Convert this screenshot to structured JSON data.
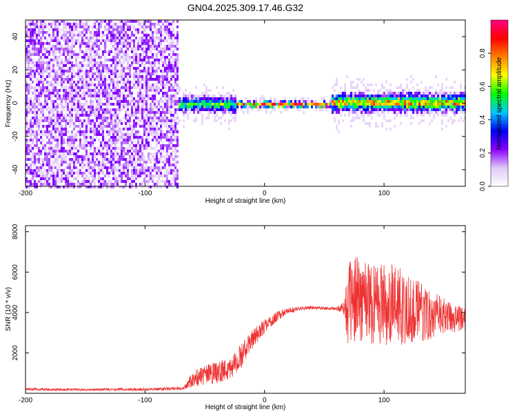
{
  "title": "GN04.2025.309.17.46.G32",
  "chart_data": [
    {
      "type": "heatmap",
      "xlabel": "Height of straight line (km)",
      "ylabel": "Frequency (Hz)",
      "xlim": [
        -200,
        168
      ],
      "ylim": [
        -50,
        50
      ],
      "xticks": [
        -200,
        -100,
        0,
        100
      ],
      "yticks": [
        -40,
        -20,
        0,
        20,
        40
      ],
      "grid": false,
      "colorbar": {
        "label": "Normalized spectral amplitude",
        "range": [
          0,
          1
        ],
        "ticks": [
          "0.0",
          "0.2",
          "0.4",
          "0.6",
          "0.8"
        ],
        "colors": [
          "#ffffff",
          "#e0c8f8",
          "#8800ff",
          "#0000ff",
          "#00c8ff",
          "#00ff00",
          "#ffff00",
          "#ff8000",
          "#ff0000",
          "#ff0080"
        ]
      },
      "segments": [
        {
          "x_range": [
            -200,
            -72
          ],
          "description_value": "broadband noise",
          "mean_amplitude": 0.15
        },
        {
          "x_range": [
            -72,
            -25
          ],
          "center_frequency": 0,
          "band_halfwidth_hz": 5,
          "peak_amplitude": 0.6
        },
        {
          "x_range": [
            -25,
            55
          ],
          "center_frequency": 0,
          "band_halfwidth_hz": 2,
          "peak_amplitude": 0.95
        },
        {
          "x_range": [
            55,
            168
          ],
          "center_frequency": 1,
          "band_halfwidth_hz": 6,
          "peak_amplitude": 0.8
        }
      ]
    },
    {
      "type": "line",
      "xlabel": "Height of straight line (km)",
      "ylabel": "SNR (10 * v/v)",
      "xlim": [
        -200,
        168
      ],
      "ylim": [
        0,
        8300
      ],
      "xticks": [
        -200,
        -100,
        0,
        100
      ],
      "yticks": [
        2000,
        4000,
        6000,
        8000
      ],
      "grid": false,
      "series": [
        {
          "color": "#ee3333",
          "x": [
            -200,
            -150,
            -100,
            -80,
            -68,
            -60,
            -50,
            -40,
            -30,
            -20,
            -10,
            0,
            10,
            20,
            30,
            40,
            50,
            60,
            66,
            70,
            80,
            90,
            100,
            110,
            120,
            130,
            140,
            150,
            160,
            168
          ],
          "values": [
            200,
            180,
            200,
            220,
            250,
            700,
            900,
            1000,
            1200,
            1800,
            2700,
            3300,
            3800,
            4100,
            4200,
            4250,
            4200,
            4200,
            4200,
            4400,
            4800,
            4600,
            4500,
            4300,
            4200,
            4000,
            3900,
            3800,
            3700,
            3700
          ],
          "spread": [
            60,
            60,
            70,
            80,
            80,
            400,
            500,
            550,
            600,
            600,
            500,
            350,
            250,
            150,
            100,
            80,
            80,
            80,
            300,
            2000,
            2200,
            2200,
            2100,
            2000,
            1800,
            1500,
            1200,
            900,
            700,
            600
          ]
        }
      ]
    }
  ]
}
